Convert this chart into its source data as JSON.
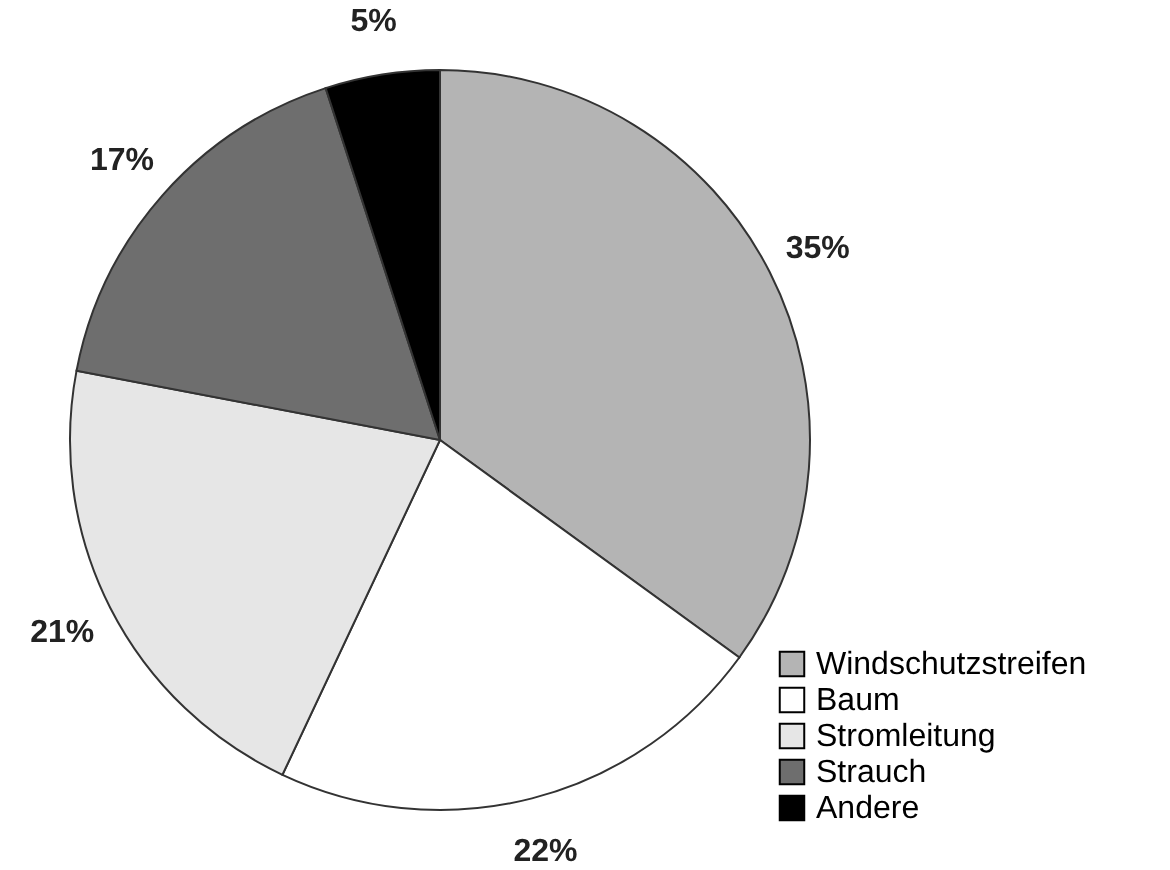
{
  "chart_data": {
    "type": "pie",
    "categories": [
      "Windschutzstreifen",
      "Baum",
      "Stromleitung",
      "Strauch",
      "Andere"
    ],
    "values": [
      35,
      22,
      21,
      17,
      5
    ],
    "value_labels": [
      "35%",
      "22%",
      "21%",
      "17%",
      "5%"
    ],
    "colors": [
      "#b4b4b4",
      "#ffffff",
      "#e6e6e6",
      "#6e6e6e",
      "#000000"
    ],
    "legend": "bottom right"
  }
}
